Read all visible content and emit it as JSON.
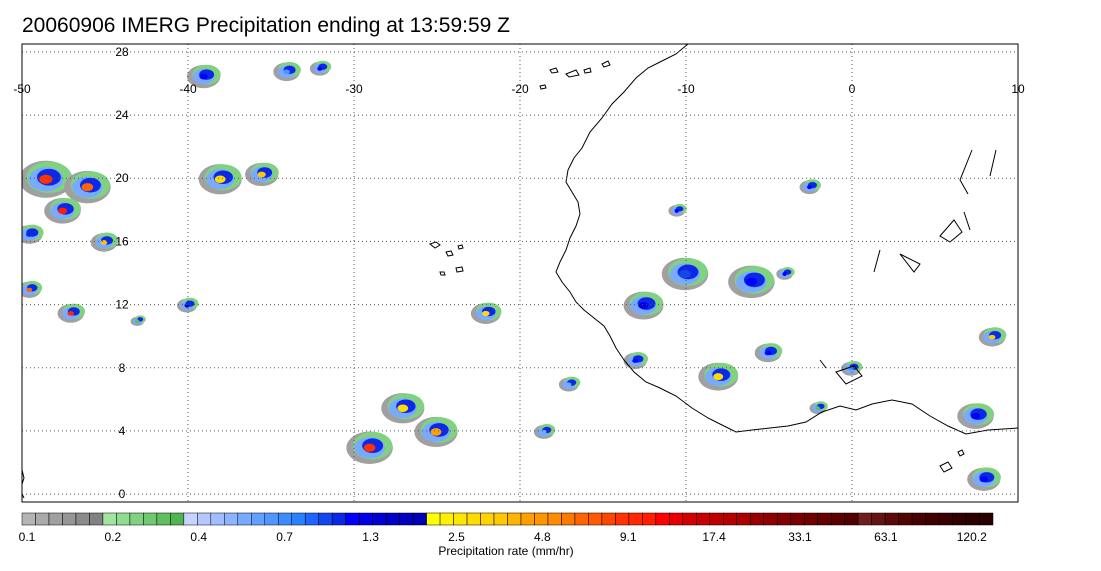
{
  "title": "20060906 IMERG Precipitation ending at 13:59:59 Z",
  "map": {
    "lon_ticks": [
      "-50",
      "-40",
      "-30",
      "-20",
      "-10",
      "0",
      "10"
    ],
    "lat_ticks": [
      "28",
      "24",
      "20",
      "16",
      "12",
      "8",
      "4",
      "0"
    ],
    "lon_range": [
      -50,
      10
    ],
    "lat_range": [
      -0.5,
      28.5
    ],
    "graticule_style": "dotted",
    "colors": {
      "coastline": "#000000",
      "graticule": "#555555",
      "frame": "#000000"
    }
  },
  "colorbar": {
    "label": "Precipitation rate (mm/hr)",
    "tick_labels": [
      "0.1",
      "0.2",
      "0.4",
      "0.7",
      "1.3",
      "2.5",
      "4.8",
      "9.1",
      "17.4",
      "33.1",
      "63.1",
      "120.2"
    ],
    "colors": [
      "#b4b4b4",
      "#aaaaaa",
      "#a0a0a0",
      "#969696",
      "#8c8c8c",
      "#828282",
      "#a0e6a0",
      "#90dc90",
      "#80d280",
      "#70c870",
      "#60be60",
      "#50b450",
      "#c8d2ff",
      "#b4c8ff",
      "#a0beff",
      "#8cb4ff",
      "#78aaff",
      "#64a0ff",
      "#5096ff",
      "#3c8cff",
      "#2882ff",
      "#1e64ff",
      "#1446f0",
      "#0a28e6",
      "#0000ff",
      "#0000e6",
      "#0000d2",
      "#0000c8",
      "#0000be",
      "#0000b4",
      "#ffff00",
      "#fff000",
      "#ffe600",
      "#ffdc00",
      "#ffd200",
      "#ffc800",
      "#ffb400",
      "#ffa000",
      "#ff9600",
      "#ff8c00",
      "#ff7800",
      "#ff6400",
      "#ff5a00",
      "#ff4600",
      "#ff3200",
      "#ff2800",
      "#ff1e00",
      "#ff0000",
      "#e60000",
      "#d20000",
      "#c80000",
      "#be0000",
      "#b40000",
      "#aa0000",
      "#960000",
      "#8c0000",
      "#820000",
      "#780000",
      "#6e0000",
      "#640000",
      "#5a0000",
      "#500000",
      "#6e1e1e",
      "#641414",
      "#5a0a0a",
      "#500505",
      "#480000",
      "#400000",
      "#380000",
      "#300000",
      "#2c0000",
      "#280000"
    ]
  },
  "precipitation_cells": [
    {
      "lon": -48.5,
      "lat": 20.0,
      "size": 1.6,
      "peak": "#ff3200"
    },
    {
      "lon": -46.0,
      "lat": 19.5,
      "size": 1.4,
      "peak": "#ff6400"
    },
    {
      "lon": -47.5,
      "lat": 18.0,
      "size": 1.1,
      "peak": "#ff1e00"
    },
    {
      "lon": -45.0,
      "lat": 16.0,
      "size": 0.8,
      "peak": "#ffc800"
    },
    {
      "lon": -47.0,
      "lat": 11.5,
      "size": 0.8,
      "peak": "#ff2800"
    },
    {
      "lon": -49.5,
      "lat": 16.5,
      "size": 0.8,
      "peak": "#0a28e6"
    },
    {
      "lon": -49.5,
      "lat": 13.0,
      "size": 0.7,
      "peak": "#ff6400"
    },
    {
      "lon": -38.0,
      "lat": 20.0,
      "size": 1.3,
      "peak": "#ffdc00"
    },
    {
      "lon": -35.5,
      "lat": 20.3,
      "size": 1.0,
      "peak": "#ffc800"
    },
    {
      "lon": -40.0,
      "lat": 12.0,
      "size": 0.6,
      "peak": "#0000d2"
    },
    {
      "lon": -29.0,
      "lat": 3.0,
      "size": 1.4,
      "peak": "#ff3200"
    },
    {
      "lon": -27.0,
      "lat": 5.5,
      "size": 1.3,
      "peak": "#ffdc00"
    },
    {
      "lon": -25.0,
      "lat": 4.0,
      "size": 1.3,
      "peak": "#ffa000"
    },
    {
      "lon": -22.0,
      "lat": 11.5,
      "size": 0.9,
      "peak": "#ffdc00"
    },
    {
      "lon": -39.0,
      "lat": 26.5,
      "size": 1.0,
      "peak": "#0000ff"
    },
    {
      "lon": -32.0,
      "lat": 27.0,
      "size": 0.6,
      "peak": "#0000ff"
    },
    {
      "lon": -34.0,
      "lat": 26.8,
      "size": 0.8,
      "peak": "#5096ff"
    },
    {
      "lon": -2.5,
      "lat": 19.5,
      "size": 0.6,
      "peak": "#0000ff"
    },
    {
      "lon": -10.0,
      "lat": 14.0,
      "size": 1.4,
      "peak": "#1446f0"
    },
    {
      "lon": -6.0,
      "lat": 13.5,
      "size": 1.4,
      "peak": "#0000ff"
    },
    {
      "lon": -12.5,
      "lat": 12.0,
      "size": 1.2,
      "peak": "#0000e6"
    },
    {
      "lon": -8.0,
      "lat": 7.5,
      "size": 1.2,
      "peak": "#ffdc00"
    },
    {
      "lon": -5.0,
      "lat": 9.0,
      "size": 0.8,
      "peak": "#0000ff"
    },
    {
      "lon": 0.0,
      "lat": 8.0,
      "size": 0.6,
      "peak": "#5096ff"
    },
    {
      "lon": 8.5,
      "lat": 10.0,
      "size": 0.8,
      "peak": "#ffc800"
    },
    {
      "lon": 7.5,
      "lat": 5.0,
      "size": 1.1,
      "peak": "#0000ff"
    },
    {
      "lon": 8.0,
      "lat": 1.0,
      "size": 1.0,
      "peak": "#0000ff"
    },
    {
      "lon": -4.0,
      "lat": 14.0,
      "size": 0.5,
      "peak": "#0000ff"
    },
    {
      "lon": -13.0,
      "lat": 8.5,
      "size": 0.7,
      "peak": "#0000ff"
    },
    {
      "lon": -17.0,
      "lat": 7.0,
      "size": 0.6,
      "peak": "#78aaff"
    },
    {
      "lon": -10.5,
      "lat": 18.0,
      "size": 0.5,
      "peak": "#0000ff"
    },
    {
      "lon": -18.5,
      "lat": 4.0,
      "size": 0.6,
      "peak": "#78aaff"
    },
    {
      "lon": -2.0,
      "lat": 5.5,
      "size": 0.5,
      "peak": "#60be60"
    },
    {
      "lon": -43.0,
      "lat": 11.0,
      "size": 0.4,
      "peak": "#60be60"
    }
  ]
}
